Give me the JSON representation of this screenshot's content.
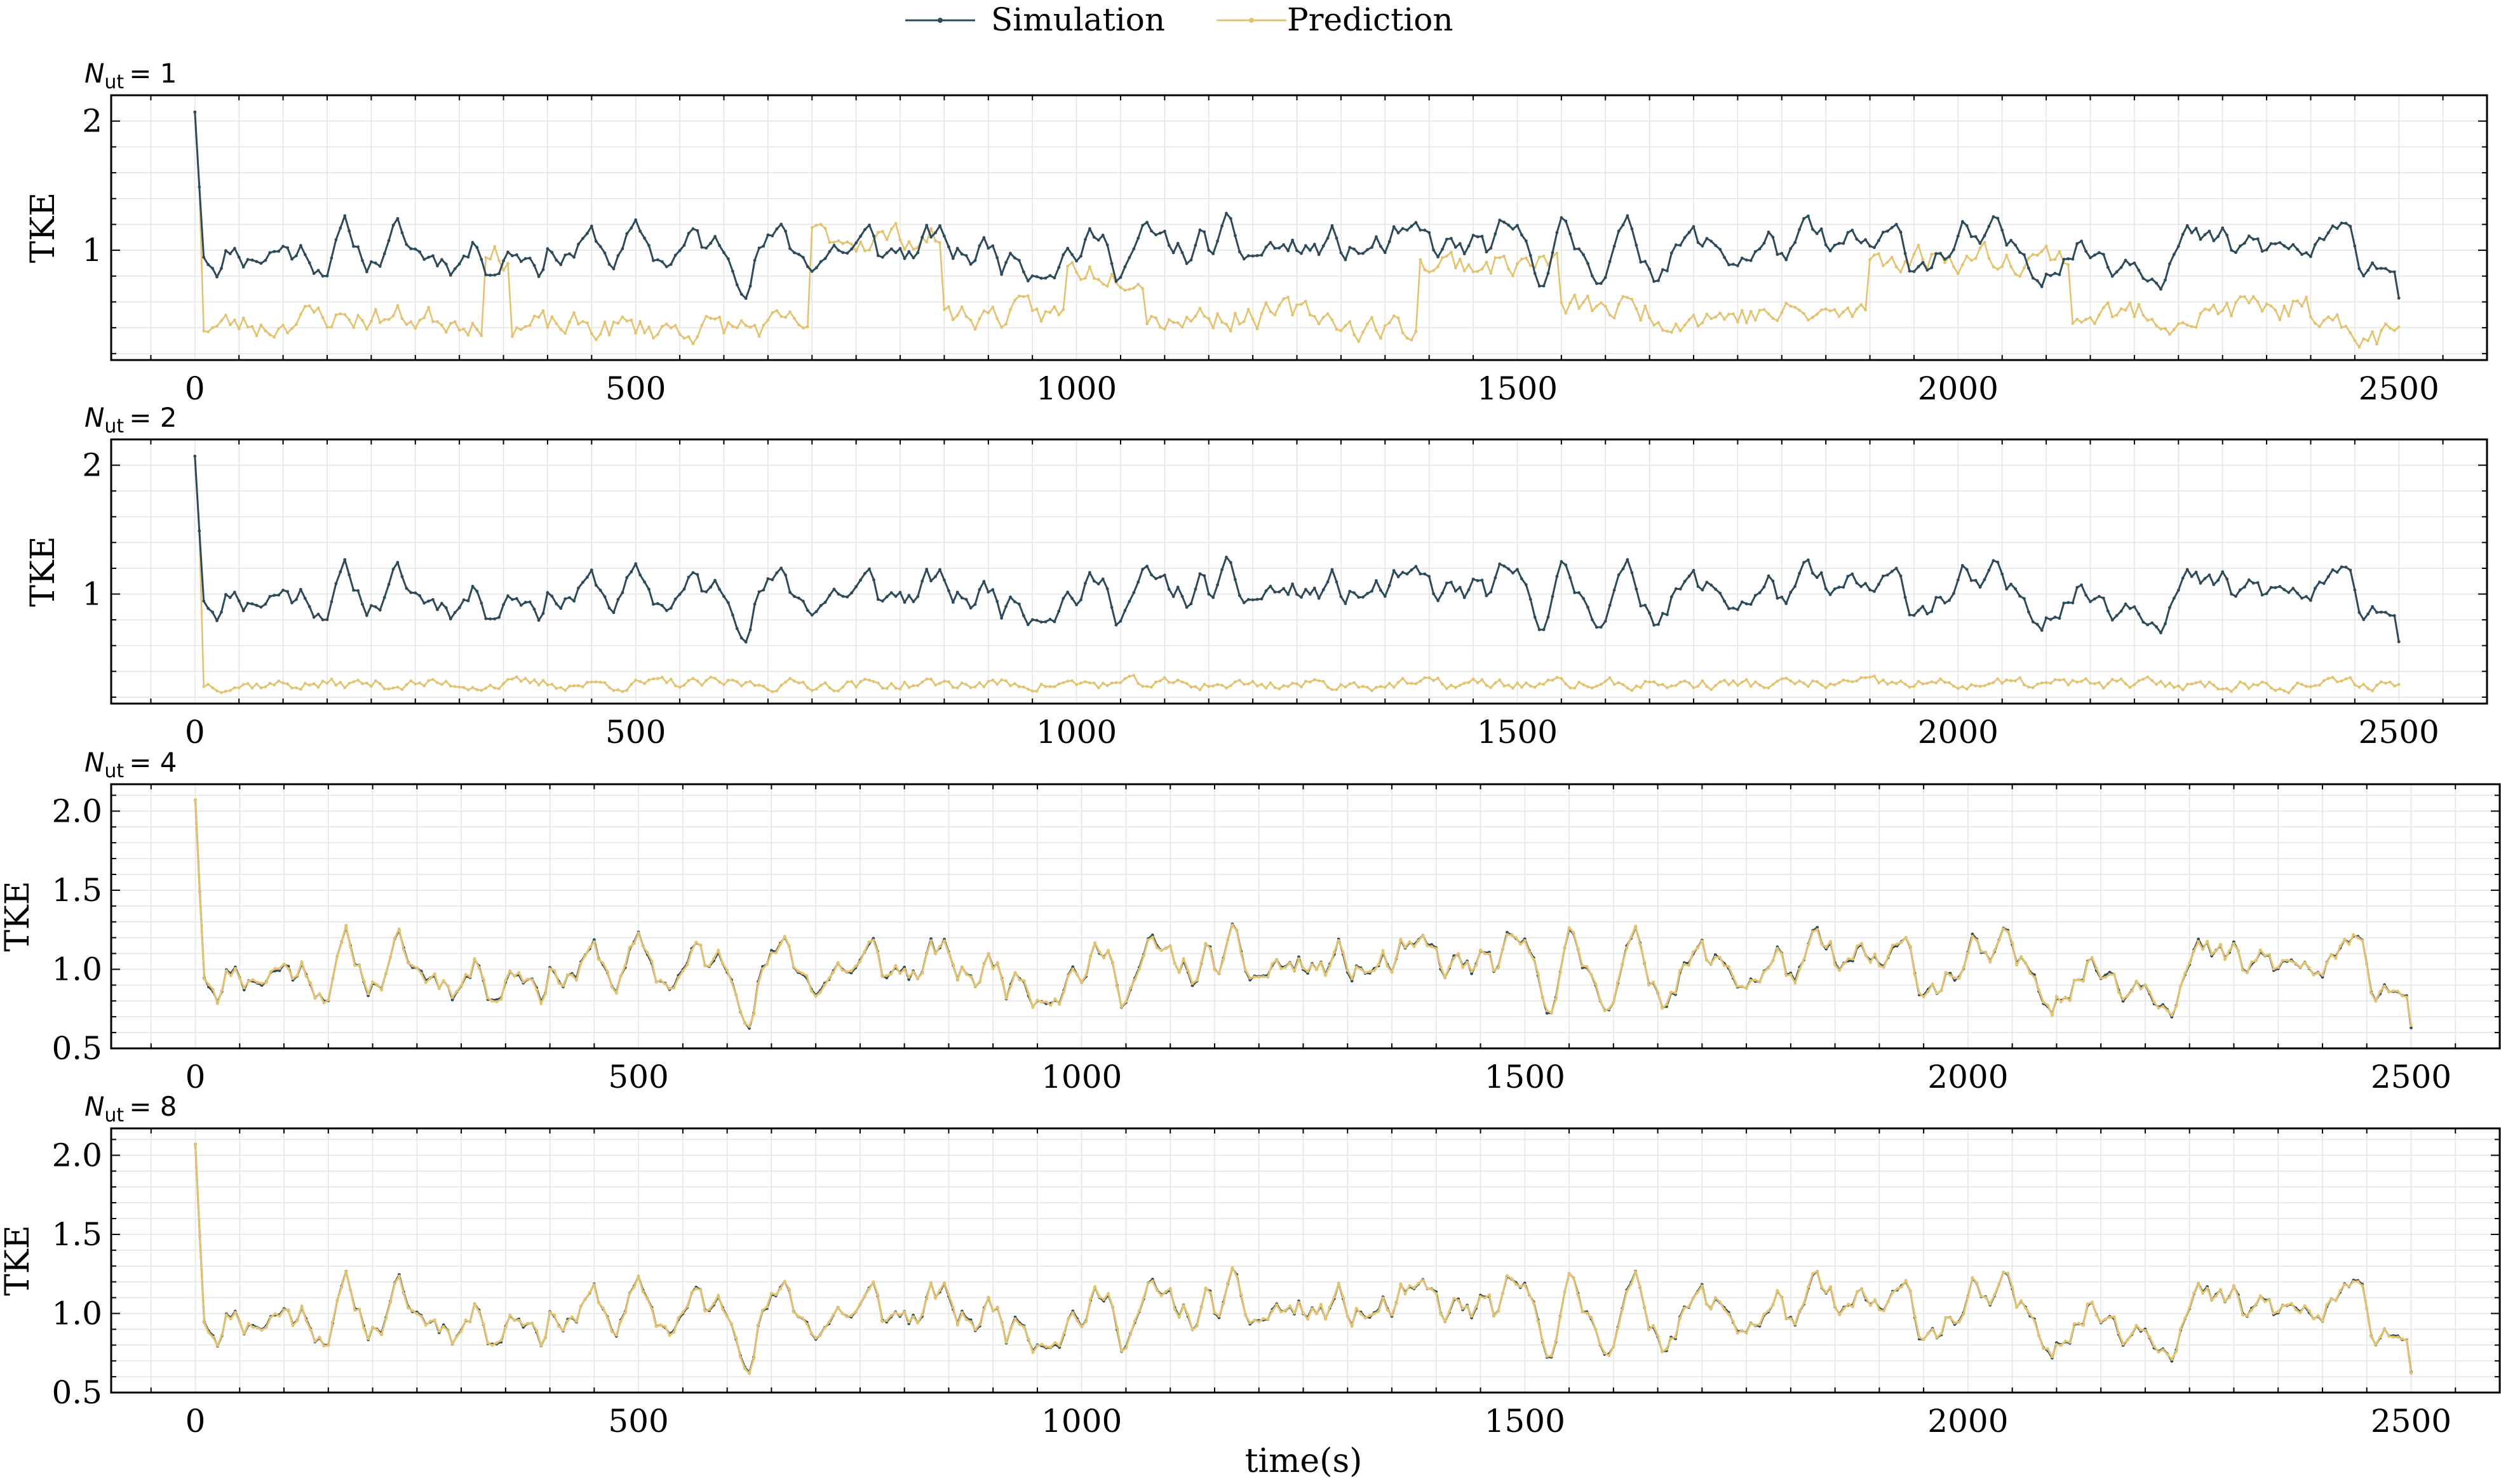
{
  "colors": {
    "simulation": "#2c4a5a",
    "prediction": "#e3c270",
    "grid": "#e4e4e4",
    "axis": "#000000"
  },
  "legend": {
    "placement": "top-center",
    "items": [
      {
        "label": "Simulation",
        "color": "#2c4a5a"
      },
      {
        "label": "Prediction",
        "color": "#e3c270"
      }
    ]
  },
  "xlabel": "time(s)",
  "chart_data": [
    {
      "type": "line",
      "title_prefix": "N",
      "title_sub": "ut",
      "title_value": "= 1",
      "ylabel": "TKE",
      "xlim": [
        -95,
        2600
      ],
      "ylim": [
        0.15,
        2.2
      ],
      "yticks": [
        1,
        2
      ],
      "ytick_labels": [
        "1",
        "2"
      ],
      "xticks": [
        0,
        500,
        1000,
        1500,
        2000,
        2500
      ],
      "xtick_labels": [
        "0",
        "500",
        "1000",
        "1500",
        "2000",
        "2500"
      ],
      "grid": true,
      "x_step": 5,
      "series": [
        {
          "name": "Simulation",
          "start": 2.07,
          "second": 1.49,
          "mean": 1.0,
          "amp": 0.13,
          "end": 0.63,
          "seed": 11
        },
        {
          "name": "Prediction",
          "start": 2.07,
          "second": 1.49,
          "regimes": [
            [
              5,
              100,
              0.42
            ],
            [
              100,
              330,
              0.48
            ],
            [
              330,
              360,
              0.95
            ],
            [
              360,
              700,
              0.4
            ],
            [
              700,
              850,
              1.1
            ],
            [
              850,
              990,
              0.5
            ],
            [
              990,
              1080,
              0.85
            ],
            [
              1080,
              1300,
              0.5
            ],
            [
              1300,
              1390,
              0.4
            ],
            [
              1390,
              1550,
              0.9
            ],
            [
              1550,
              1650,
              0.55
            ],
            [
              1650,
              1780,
              0.5
            ],
            [
              1780,
              1900,
              0.5
            ],
            [
              1900,
              2130,
              0.95
            ],
            [
              2130,
              2300,
              0.5
            ],
            [
              2300,
              2400,
              0.55
            ],
            [
              2400,
              2500,
              0.35
            ]
          ],
          "amp": 0.12,
          "seed": 23
        }
      ]
    },
    {
      "type": "line",
      "title_prefix": "N",
      "title_sub": "ut",
      "title_value": "= 2",
      "ylabel": "TKE",
      "xlim": [
        -95,
        2600
      ],
      "ylim": [
        0.15,
        2.2
      ],
      "yticks": [
        1,
        2
      ],
      "ytick_labels": [
        "1",
        "2"
      ],
      "xticks": [
        0,
        500,
        1000,
        1500,
        2000,
        2500
      ],
      "xtick_labels": [
        "0",
        "500",
        "1000",
        "1500",
        "2000",
        "2500"
      ],
      "grid": true,
      "x_step": 5,
      "series": [
        {
          "name": "Simulation",
          "start": 2.07,
          "second": 1.49,
          "mean": 1.0,
          "amp": 0.13,
          "end": 0.63,
          "seed": 11
        },
        {
          "name": "Prediction",
          "start": 2.07,
          "second": 1.49,
          "regimes": [
            [
              5,
              2500,
              0.3
            ]
          ],
          "amp": 0.05,
          "seed": 37
        }
      ]
    },
    {
      "type": "line",
      "title_prefix": "N",
      "title_sub": "ut",
      "title_value": "= 4",
      "ylabel": "TKE",
      "xlim": [
        -95,
        2600
      ],
      "ylim": [
        0.5,
        2.17
      ],
      "yticks": [
        0.5,
        1.0,
        1.5,
        2.0
      ],
      "ytick_labels": [
        "0.5",
        "1.0",
        "1.5",
        "2.0"
      ],
      "xticks": [
        0,
        500,
        1000,
        1500,
        2000,
        2500
      ],
      "xtick_labels": [
        "0",
        "500",
        "1000",
        "1500",
        "2000",
        "2500"
      ],
      "grid": true,
      "x_step": 5,
      "series": [
        {
          "name": "Simulation",
          "start": 2.07,
          "second": 1.49,
          "mean": 1.0,
          "amp": 0.13,
          "end": 0.63,
          "seed": 11
        },
        {
          "name": "Prediction",
          "follows": "Simulation",
          "jitter": 0.015,
          "seed": 41
        }
      ]
    },
    {
      "type": "line",
      "title_prefix": "N",
      "title_sub": "ut",
      "title_value": "= 8",
      "ylabel": "TKE",
      "xlim": [
        -95,
        2600
      ],
      "ylim": [
        0.5,
        2.17
      ],
      "yticks": [
        0.5,
        1.0,
        1.5,
        2.0
      ],
      "ytick_labels": [
        "0.5",
        "1.0",
        "1.5",
        "2.0"
      ],
      "xticks": [
        0,
        500,
        1000,
        1500,
        2000,
        2500
      ],
      "xtick_labels": [
        "0",
        "500",
        "1000",
        "1500",
        "2000",
        "2500"
      ],
      "grid": true,
      "x_step": 5,
      "series": [
        {
          "name": "Simulation",
          "start": 2.07,
          "second": 1.49,
          "mean": 1.0,
          "amp": 0.13,
          "end": 0.63,
          "seed": 11
        },
        {
          "name": "Prediction",
          "follows": "Simulation",
          "jitter": 0.012,
          "seed": 53
        }
      ]
    }
  ]
}
